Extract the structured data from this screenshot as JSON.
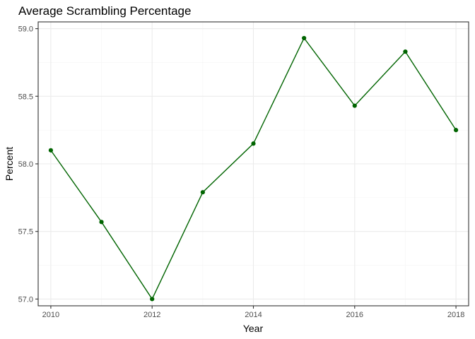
{
  "chart_data": {
    "type": "line",
    "title": "Average Scrambling Percentage",
    "xlabel": "Year",
    "ylabel": "Percent",
    "xlim": [
      2009.75,
      2018.25
    ],
    "ylim": [
      56.95,
      59.05
    ],
    "x_ticks": [
      2010,
      2012,
      2014,
      2016,
      2018
    ],
    "y_ticks": [
      57.0,
      57.5,
      58.0,
      58.5,
      59.0
    ],
    "y_tick_labels": [
      "57.0",
      "57.5",
      "58.0",
      "58.5",
      "59.0"
    ],
    "grid": true,
    "series": [
      {
        "x": [
          2010,
          2011,
          2012,
          2013,
          2014,
          2015,
          2016,
          2017,
          2018
        ],
        "values": [
          58.1,
          57.57,
          57.0,
          57.79,
          58.15,
          58.93,
          58.43,
          58.83,
          58.25
        ],
        "color": "#006400"
      }
    ]
  }
}
